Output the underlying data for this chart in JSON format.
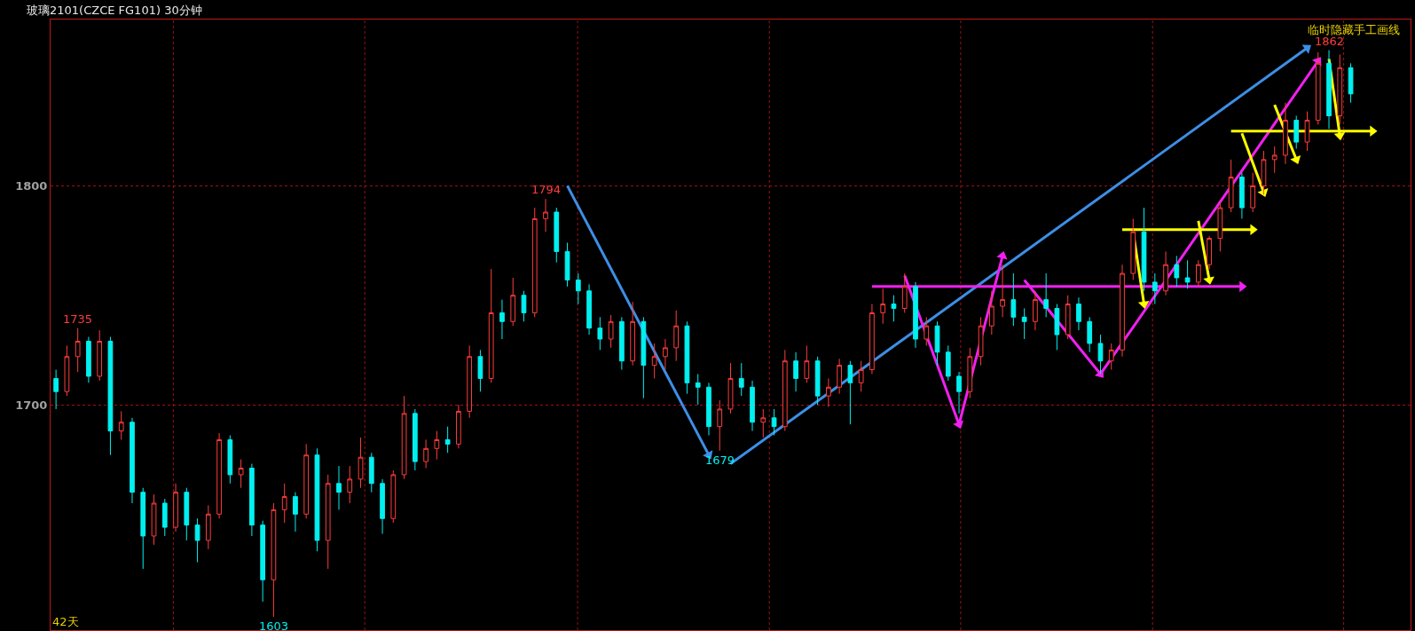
{
  "chart_data": {
    "type": "candlestick",
    "title": "玻璃2101(CZCE FG101) 30分钟",
    "categories": [
      null,
      null,
      null,
      null,
      null,
      null,
      null,
      null,
      null,
      null,
      null,
      null,
      null,
      null,
      null,
      null,
      null,
      null,
      null,
      null,
      null,
      null,
      null,
      null,
      null,
      null,
      null,
      null,
      null,
      null,
      null,
      null,
      null,
      null,
      null,
      null,
      null,
      null,
      null,
      null,
      null,
      null,
      null,
      null,
      null,
      null,
      null,
      null,
      null,
      null,
      null,
      null,
      null,
      null,
      null,
      null,
      null,
      null,
      null,
      null,
      null,
      null,
      null,
      null,
      null,
      null,
      null,
      null,
      null,
      null,
      null,
      null,
      null,
      null,
      null,
      null,
      null,
      null,
      null,
      null,
      null,
      null,
      null,
      null,
      null,
      null,
      null,
      null,
      null,
      null,
      null,
      null,
      null,
      null,
      null,
      null,
      null,
      null,
      null,
      null,
      null,
      null,
      null,
      null,
      null,
      null,
      null,
      null,
      null,
      null,
      null,
      null,
      null,
      null,
      null,
      null,
      null,
      null,
      null,
      null,
      null,
      null,
      null,
      null,
      null
    ],
    "ohlc": [
      [
        1712,
        1716,
        1698,
        1706
      ],
      [
        1706,
        1727,
        1704,
        1722
      ],
      [
        1722,
        1735,
        1715,
        1729
      ],
      [
        1729,
        1731,
        1710,
        1713
      ],
      [
        1713,
        1734,
        1711,
        1729
      ],
      [
        1729,
        1731,
        1677,
        1688
      ],
      [
        1688,
        1697,
        1684,
        1692
      ],
      [
        1692,
        1694,
        1655,
        1660
      ],
      [
        1660,
        1662,
        1625,
        1640
      ],
      [
        1640,
        1659,
        1636,
        1655
      ],
      [
        1655,
        1657,
        1640,
        1644
      ],
      [
        1644,
        1664,
        1642,
        1660
      ],
      [
        1660,
        1662,
        1638,
        1645
      ],
      [
        1645,
        1648,
        1628,
        1638
      ],
      [
        1638,
        1654,
        1634,
        1650
      ],
      [
        1650,
        1687,
        1648,
        1684
      ],
      [
        1684,
        1686,
        1664,
        1668
      ],
      [
        1668,
        1675,
        1662,
        1671
      ],
      [
        1671,
        1673,
        1640,
        1645
      ],
      [
        1645,
        1647,
        1610,
        1620
      ],
      [
        1620,
        1655,
        1603,
        1652
      ],
      [
        1652,
        1664,
        1646,
        1658
      ],
      [
        1658,
        1660,
        1642,
        1650
      ],
      [
        1650,
        1682,
        1648,
        1677
      ],
      [
        1677,
        1680,
        1633,
        1638
      ],
      [
        1638,
        1668,
        1625,
        1664
      ],
      [
        1664,
        1672,
        1652,
        1660
      ],
      [
        1660,
        1672,
        1655,
        1666
      ],
      [
        1666,
        1685,
        1662,
        1676
      ],
      [
        1676,
        1678,
        1660,
        1664
      ],
      [
        1664,
        1666,
        1641,
        1648
      ],
      [
        1648,
        1670,
        1646,
        1668
      ],
      [
        1668,
        1704,
        1666,
        1696
      ],
      [
        1696,
        1698,
        1670,
        1674
      ],
      [
        1674,
        1684,
        1671,
        1680
      ],
      [
        1680,
        1688,
        1675,
        1684
      ],
      [
        1684,
        1690,
        1678,
        1682
      ],
      [
        1682,
        1700,
        1680,
        1697
      ],
      [
        1697,
        1727,
        1694,
        1722
      ],
      [
        1722,
        1725,
        1706,
        1712
      ],
      [
        1712,
        1762,
        1710,
        1742
      ],
      [
        1742,
        1748,
        1730,
        1738
      ],
      [
        1738,
        1758,
        1736,
        1750
      ],
      [
        1750,
        1752,
        1738,
        1742
      ],
      [
        1742,
        1790,
        1740,
        1785
      ],
      [
        1785,
        1794,
        1779,
        1788
      ],
      [
        1788,
        1790,
        1765,
        1770
      ],
      [
        1770,
        1774,
        1754,
        1757
      ],
      [
        1757,
        1760,
        1746,
        1752
      ],
      [
        1752,
        1755,
        1732,
        1735
      ],
      [
        1735,
        1740,
        1725,
        1730
      ],
      [
        1730,
        1741,
        1726,
        1738
      ],
      [
        1738,
        1740,
        1716,
        1720
      ],
      [
        1720,
        1747,
        1718,
        1738
      ],
      [
        1738,
        1740,
        1703,
        1718
      ],
      [
        1718,
        1728,
        1712,
        1722
      ],
      [
        1722,
        1730,
        1716,
        1726
      ],
      [
        1726,
        1743,
        1720,
        1736
      ],
      [
        1736,
        1738,
        1705,
        1710
      ],
      [
        1710,
        1714,
        1700,
        1708
      ],
      [
        1708,
        1710,
        1686,
        1690
      ],
      [
        1690,
        1702,
        1679,
        1698
      ],
      [
        1698,
        1719,
        1696,
        1712
      ],
      [
        1712,
        1719,
        1704,
        1708
      ],
      [
        1708,
        1711,
        1688,
        1692
      ],
      [
        1692,
        1698,
        1685,
        1694
      ],
      [
        1694,
        1698,
        1686,
        1690
      ],
      [
        1690,
        1725,
        1688,
        1720
      ],
      [
        1720,
        1724,
        1706,
        1712
      ],
      [
        1712,
        1727,
        1710,
        1720
      ],
      [
        1720,
        1722,
        1700,
        1704
      ],
      [
        1704,
        1712,
        1699,
        1708
      ],
      [
        1708,
        1721,
        1705,
        1718
      ],
      [
        1718,
        1720,
        1691,
        1710
      ],
      [
        1710,
        1720,
        1706,
        1716
      ],
      [
        1716,
        1746,
        1714,
        1742
      ],
      [
        1742,
        1753,
        1737,
        1746
      ],
      [
        1746,
        1750,
        1738,
        1744
      ],
      [
        1744,
        1760,
        1742,
        1754
      ],
      [
        1754,
        1756,
        1726,
        1730
      ],
      [
        1730,
        1740,
        1727,
        1736
      ],
      [
        1736,
        1738,
        1718,
        1724
      ],
      [
        1724,
        1727,
        1711,
        1713
      ],
      [
        1713,
        1715,
        1696,
        1706
      ],
      [
        1706,
        1726,
        1703,
        1722
      ],
      [
        1722,
        1740,
        1718,
        1736
      ],
      [
        1736,
        1752,
        1732,
        1745
      ],
      [
        1745,
        1764,
        1740,
        1748
      ],
      [
        1748,
        1760,
        1736,
        1740
      ],
      [
        1740,
        1744,
        1730,
        1738
      ],
      [
        1738,
        1752,
        1734,
        1748
      ],
      [
        1748,
        1760,
        1740,
        1744
      ],
      [
        1744,
        1746,
        1725,
        1732
      ],
      [
        1732,
        1750,
        1730,
        1746
      ],
      [
        1746,
        1749,
        1734,
        1738
      ],
      [
        1738,
        1740,
        1724,
        1728
      ],
      [
        1728,
        1732,
        1714,
        1720
      ],
      [
        1720,
        1728,
        1716,
        1725
      ],
      [
        1725,
        1764,
        1722,
        1760
      ],
      [
        1760,
        1785,
        1757,
        1779
      ],
      [
        1779,
        1790,
        1752,
        1756
      ],
      [
        1756,
        1760,
        1746,
        1752
      ],
      [
        1752,
        1770,
        1750,
        1764
      ],
      [
        1764,
        1768,
        1754,
        1758
      ],
      [
        1758,
        1766,
        1753,
        1756
      ],
      [
        1756,
        1766,
        1754,
        1764
      ],
      [
        1764,
        1777,
        1762,
        1776
      ],
      [
        1776,
        1793,
        1770,
        1790
      ],
      [
        1790,
        1812,
        1788,
        1804
      ],
      [
        1804,
        1806,
        1785,
        1790
      ],
      [
        1790,
        1806,
        1788,
        1800
      ],
      [
        1800,
        1816,
        1796,
        1812
      ],
      [
        1812,
        1818,
        1806,
        1814
      ],
      [
        1814,
        1838,
        1810,
        1830
      ],
      [
        1830,
        1832,
        1817,
        1820
      ],
      [
        1820,
        1834,
        1816,
        1830
      ],
      [
        1830,
        1861,
        1828,
        1856
      ],
      [
        1856,
        1862,
        1826,
        1832
      ],
      [
        1832,
        1860,
        1828,
        1854
      ],
      [
        1854,
        1856,
        1838,
        1842
      ],
      null,
      null,
      null,
      null,
      null
    ],
    "series": [
      {
        "type": "line",
        "color": "#3d8fe6",
        "values": [
          null,
          null,
          null,
          null,
          null,
          null,
          null,
          null,
          null,
          null,
          null,
          null,
          null,
          null,
          null,
          null,
          null,
          null,
          null,
          null,
          null,
          null,
          null,
          null,
          null,
          null,
          null,
          null,
          null,
          null,
          null,
          null,
          null,
          null,
          null,
          null,
          null,
          null,
          null,
          null,
          null,
          null,
          null,
          null,
          null,
          null,
          null,
          1800,
          null,
          null,
          null,
          null,
          null,
          null,
          null,
          null,
          null,
          null,
          null,
          null,
          1677,
          null,
          null,
          null,
          null,
          null,
          null,
          null,
          null,
          null,
          null,
          null,
          null,
          null,
          null,
          null,
          null,
          null,
          null,
          null,
          null,
          null,
          null,
          null,
          null,
          null,
          null,
          null,
          null,
          null,
          null,
          null,
          null,
          null,
          null,
          null,
          null,
          null,
          null,
          null,
          null,
          null,
          null,
          null,
          null,
          null,
          null,
          null,
          null,
          null,
          null,
          null,
          null,
          null,
          null,
          null,
          null,
          null,
          null,
          null,
          null,
          null,
          null,
          null,
          null
        ]
      },
      {
        "type": "line",
        "color": "#3d8fe6",
        "values": [
          null,
          null,
          null,
          null,
          null,
          null,
          null,
          null,
          null,
          null,
          null,
          null,
          null,
          null,
          null,
          null,
          null,
          null,
          null,
          null,
          null,
          null,
          null,
          null,
          null,
          null,
          null,
          null,
          null,
          null,
          null,
          null,
          null,
          null,
          null,
          null,
          null,
          null,
          null,
          null,
          null,
          null,
          null,
          null,
          null,
          null,
          null,
          null,
          null,
          null,
          null,
          null,
          null,
          null,
          null,
          null,
          null,
          null,
          null,
          null,
          null,
          null,
          1673,
          null,
          null,
          null,
          null,
          null,
          null,
          null,
          null,
          null,
          null,
          null,
          null,
          null,
          null,
          null,
          null,
          null,
          null,
          null,
          null,
          null,
          null,
          null,
          null,
          null,
          null,
          null,
          null,
          null,
          null,
          null,
          null,
          null,
          null,
          null,
          null,
          null,
          null,
          null,
          null,
          null,
          null,
          null,
          null,
          null,
          null,
          null,
          null,
          null,
          null,
          null,
          null,
          1863,
          null,
          null,
          null,
          null,
          null,
          null,
          null,
          null,
          null
        ]
      },
      {
        "type": "line",
        "color": "#f020f0",
        "values": [
          null,
          null,
          null,
          null,
          null,
          null,
          null,
          null,
          null,
          null,
          null,
          null,
          null,
          null,
          null,
          null,
          null,
          null,
          null,
          null,
          null,
          null,
          null,
          null,
          null,
          null,
          null,
          null,
          null,
          null,
          null,
          null,
          null,
          null,
          null,
          null,
          null,
          null,
          null,
          null,
          null,
          null,
          null,
          null,
          null,
          null,
          null,
          null,
          null,
          null,
          null,
          null,
          null,
          null,
          null,
          null,
          null,
          null,
          null,
          null,
          null,
          null,
          null,
          null,
          null,
          null,
          null,
          null,
          null,
          null,
          null,
          null,
          null,
          null,
          null,
          null,
          null,
          null,
          1759,
          null,
          null,
          null,
          null,
          1691,
          null,
          null,
          null,
          1768,
          null,
          null,
          null,
          null,
          null,
          null,
          null,
          null,
          null,
          null,
          null,
          null,
          null,
          null,
          null,
          null,
          null,
          null,
          null,
          null,
          null,
          null,
          null,
          null,
          null,
          null,
          null,
          null,
          null,
          null,
          null,
          null,
          null,
          null,
          null,
          null,
          null
        ]
      },
      {
        "type": "line",
        "color": "#f020f0",
        "values": [
          null,
          null,
          null,
          null,
          null,
          null,
          null,
          null,
          null,
          null,
          null,
          null,
          null,
          null,
          null,
          null,
          null,
          null,
          null,
          null,
          null,
          null,
          null,
          null,
          null,
          null,
          null,
          null,
          null,
          null,
          null,
          null,
          null,
          null,
          null,
          null,
          null,
          null,
          null,
          null,
          null,
          null,
          null,
          null,
          null,
          null,
          null,
          null,
          null,
          null,
          null,
          null,
          null,
          null,
          null,
          null,
          null,
          null,
          null,
          null,
          null,
          null,
          null,
          null,
          null,
          null,
          null,
          null,
          null,
          null,
          null,
          null,
          null,
          null,
          null,
          null,
          null,
          null,
          null,
          null,
          null,
          null,
          null,
          null,
          null,
          null,
          null,
          null,
          null,
          1757,
          null,
          null,
          null,
          null,
          null,
          null,
          1714,
          null,
          null,
          null,
          null,
          null,
          null,
          null,
          null,
          null,
          null,
          null,
          null,
          null,
          null,
          null,
          null,
          null,
          null,
          null,
          1857,
          null,
          null,
          null,
          null,
          null,
          null,
          null,
          null
        ]
      },
      {
        "type": "line",
        "color": "#f020f0",
        "values": [
          null,
          null,
          null,
          null,
          null,
          null,
          null,
          null,
          null,
          null,
          null,
          null,
          null,
          null,
          null,
          null,
          null,
          null,
          null,
          null,
          null,
          null,
          null,
          null,
          null,
          null,
          null,
          null,
          null,
          null,
          null,
          null,
          null,
          null,
          null,
          null,
          null,
          null,
          null,
          null,
          null,
          null,
          null,
          null,
          null,
          null,
          null,
          null,
          null,
          null,
          null,
          null,
          null,
          null,
          null,
          null,
          null,
          null,
          null,
          null,
          null,
          null,
          null,
          null,
          null,
          null,
          null,
          null,
          null,
          null,
          null,
          null,
          null,
          null,
          null,
          1754,
          null,
          null,
          null,
          null,
          null,
          null,
          null,
          null,
          null,
          null,
          null,
          null,
          null,
          null,
          null,
          null,
          null,
          null,
          null,
          null,
          null,
          null,
          null,
          null,
          null,
          null,
          null,
          null,
          null,
          null,
          null,
          null,
          null,
          1754,
          null,
          null,
          null,
          null,
          null,
          null,
          null,
          null,
          null,
          null,
          null,
          null,
          null,
          null,
          null
        ]
      },
      {
        "type": "line",
        "color": "#ffff00",
        "values": [
          null,
          null,
          null,
          null,
          null,
          null,
          null,
          null,
          null,
          null,
          null,
          null,
          null,
          null,
          null,
          null,
          null,
          null,
          null,
          null,
          null,
          null,
          null,
          null,
          null,
          null,
          null,
          null,
          null,
          null,
          null,
          null,
          null,
          null,
          null,
          null,
          null,
          null,
          null,
          null,
          null,
          null,
          null,
          null,
          null,
          null,
          null,
          null,
          null,
          null,
          null,
          null,
          null,
          null,
          null,
          null,
          null,
          null,
          null,
          null,
          null,
          null,
          null,
          null,
          null,
          null,
          null,
          null,
          null,
          null,
          null,
          null,
          null,
          null,
          null,
          null,
          null,
          null,
          null,
          null,
          null,
          null,
          null,
          null,
          null,
          null,
          null,
          null,
          null,
          null,
          null,
          null,
          null,
          null,
          null,
          null,
          null,
          null,
          1780,
          null,
          null,
          null,
          null,
          null,
          null,
          null,
          null,
          null,
          null,
          null,
          1780,
          null,
          null,
          null,
          null,
          null,
          null,
          null,
          null,
          null,
          null,
          null,
          null,
          null,
          null
        ]
      },
      {
        "type": "line",
        "color": "#ffff00",
        "values": [
          null,
          null,
          null,
          null,
          null,
          null,
          null,
          null,
          null,
          null,
          null,
          null,
          null,
          null,
          null,
          null,
          null,
          null,
          null,
          null,
          null,
          null,
          null,
          null,
          null,
          null,
          null,
          null,
          null,
          null,
          null,
          null,
          null,
          null,
          null,
          null,
          null,
          null,
          null,
          null,
          null,
          null,
          null,
          null,
          null,
          null,
          null,
          null,
          null,
          null,
          null,
          null,
          null,
          null,
          null,
          null,
          null,
          null,
          null,
          null,
          null,
          null,
          null,
          null,
          null,
          null,
          null,
          null,
          null,
          null,
          null,
          null,
          null,
          null,
          null,
          null,
          null,
          null,
          null,
          null,
          null,
          null,
          null,
          null,
          null,
          null,
          null,
          null,
          null,
          null,
          null,
          null,
          null,
          null,
          null,
          null,
          null,
          null,
          null,
          null,
          null,
          null,
          null,
          null,
          null,
          null,
          null,
          null,
          1825,
          null,
          null,
          null,
          null,
          null,
          null,
          null,
          null,
          null,
          null,
          null,
          null,
          1825,
          null,
          null,
          null
        ]
      },
      {
        "type": "line",
        "color": "#ffff00",
        "values": [
          null,
          null,
          null,
          null,
          null,
          null,
          null,
          null,
          null,
          null,
          null,
          null,
          null,
          null,
          null,
          null,
          null,
          null,
          null,
          null,
          null,
          null,
          null,
          null,
          null,
          null,
          null,
          null,
          null,
          null,
          null,
          null,
          null,
          null,
          null,
          null,
          null,
          null,
          null,
          null,
          null,
          null,
          null,
          null,
          null,
          null,
          null,
          null,
          null,
          null,
          null,
          null,
          null,
          null,
          null,
          null,
          null,
          null,
          null,
          null,
          null,
          null,
          null,
          null,
          null,
          null,
          null,
          null,
          null,
          null,
          null,
          null,
          null,
          null,
          null,
          null,
          null,
          null,
          null,
          null,
          null,
          null,
          null,
          null,
          null,
          null,
          null,
          null,
          null,
          null,
          null,
          null,
          null,
          null,
          null,
          null,
          null,
          null,
          null,
          1779,
          1746,
          null,
          null,
          null,
          null,
          null,
          null,
          null,
          null,
          null,
          null,
          null,
          null,
          null,
          null,
          null,
          null,
          null,
          null,
          null,
          null,
          null,
          null,
          null,
          null
        ]
      },
      {
        "type": "line",
        "color": "#ffff00",
        "values": [
          null,
          null,
          null,
          null,
          null,
          null,
          null,
          null,
          null,
          null,
          null,
          null,
          null,
          null,
          null,
          null,
          null,
          null,
          null,
          null,
          null,
          null,
          null,
          null,
          null,
          null,
          null,
          null,
          null,
          null,
          null,
          null,
          null,
          null,
          null,
          null,
          null,
          null,
          null,
          null,
          null,
          null,
          null,
          null,
          null,
          null,
          null,
          null,
          null,
          null,
          null,
          null,
          null,
          null,
          null,
          null,
          null,
          null,
          null,
          null,
          null,
          null,
          null,
          null,
          null,
          null,
          null,
          null,
          null,
          null,
          null,
          null,
          null,
          null,
          null,
          null,
          null,
          null,
          null,
          null,
          null,
          null,
          null,
          null,
          null,
          null,
          null,
          null,
          null,
          null,
          null,
          null,
          null,
          null,
          null,
          null,
          null,
          null,
          null,
          null,
          null,
          null,
          null,
          null,
          null,
          1784,
          1757,
          null,
          null,
          null,
          null,
          null,
          null,
          null,
          null,
          null,
          null,
          null,
          null,
          null,
          null,
          null,
          null,
          null,
          null
        ]
      },
      {
        "type": "line",
        "color": "#ffff00",
        "values": [
          null,
          null,
          null,
          null,
          null,
          null,
          null,
          null,
          null,
          null,
          null,
          null,
          null,
          null,
          null,
          null,
          null,
          null,
          null,
          null,
          null,
          null,
          null,
          null,
          null,
          null,
          null,
          null,
          null,
          null,
          null,
          null,
          null,
          null,
          null,
          null,
          null,
          null,
          null,
          null,
          null,
          null,
          null,
          null,
          null,
          null,
          null,
          null,
          null,
          null,
          null,
          null,
          null,
          null,
          null,
          null,
          null,
          null,
          null,
          null,
          null,
          null,
          null,
          null,
          null,
          null,
          null,
          null,
          null,
          null,
          null,
          null,
          null,
          null,
          null,
          null,
          null,
          null,
          null,
          null,
          null,
          null,
          null,
          null,
          null,
          null,
          null,
          null,
          null,
          null,
          null,
          null,
          null,
          null,
          null,
          null,
          null,
          null,
          null,
          null,
          null,
          null,
          null,
          null,
          null,
          null,
          null,
          null,
          null,
          1824,
          null,
          1797,
          null,
          null,
          null,
          null,
          null,
          null,
          null,
          null,
          null,
          null,
          null,
          null,
          null
        ]
      },
      {
        "type": "line",
        "color": "#ffff00",
        "values": [
          null,
          null,
          null,
          null,
          null,
          null,
          null,
          null,
          null,
          null,
          null,
          null,
          null,
          null,
          null,
          null,
          null,
          null,
          null,
          null,
          null,
          null,
          null,
          null,
          null,
          null,
          null,
          null,
          null,
          null,
          null,
          null,
          null,
          null,
          null,
          null,
          null,
          null,
          null,
          null,
          null,
          null,
          null,
          null,
          null,
          null,
          null,
          null,
          null,
          null,
          null,
          null,
          null,
          null,
          null,
          null,
          null,
          null,
          null,
          null,
          null,
          null,
          null,
          null,
          null,
          null,
          null,
          null,
          null,
          null,
          null,
          null,
          null,
          null,
          null,
          null,
          null,
          null,
          null,
          null,
          null,
          null,
          null,
          null,
          null,
          null,
          null,
          null,
          null,
          null,
          null,
          null,
          null,
          null,
          null,
          null,
          null,
          null,
          null,
          null,
          null,
          null,
          null,
          null,
          null,
          null,
          null,
          null,
          null,
          null,
          null,
          null,
          1837,
          null,
          1812,
          null,
          null,
          null,
          null,
          null,
          null,
          null,
          null,
          null,
          null
        ]
      },
      {
        "type": "line",
        "color": "#ffff00",
        "values": [
          null,
          null,
          null,
          null,
          null,
          null,
          null,
          null,
          null,
          null,
          null,
          null,
          null,
          null,
          null,
          null,
          null,
          null,
          null,
          null,
          null,
          null,
          null,
          null,
          null,
          null,
          null,
          null,
          null,
          null,
          null,
          null,
          null,
          null,
          null,
          null,
          null,
          null,
          null,
          null,
          null,
          null,
          null,
          null,
          null,
          null,
          null,
          null,
          null,
          null,
          null,
          null,
          null,
          null,
          null,
          null,
          null,
          null,
          null,
          null,
          null,
          null,
          null,
          null,
          null,
          null,
          null,
          null,
          null,
          null,
          null,
          null,
          null,
          null,
          null,
          null,
          null,
          null,
          null,
          null,
          null,
          null,
          null,
          null,
          null,
          null,
          null,
          null,
          null,
          null,
          null,
          null,
          null,
          null,
          null,
          null,
          null,
          null,
          null,
          null,
          null,
          null,
          null,
          null,
          null,
          null,
          null,
          null,
          null,
          null,
          null,
          null,
          null,
          null,
          null,
          null,
          null,
          1858,
          1823,
          null,
          null,
          null,
          null,
          null,
          null
        ]
      }
    ],
    "ylim": [
      1597,
      1876
    ],
    "yticks": [
      1700,
      1800
    ],
    "grid": "y",
    "tick_labels": "y",
    "marker": "triangle",
    "annotations": [
      "临时隐藏手工画线",
      "42天",
      {
        "text": "1735",
        "y": 1735
      },
      {
        "text": "1794",
        "y": 1794
      },
      {
        "text": "1603",
        "y": 1603
      },
      {
        "text": "1679",
        "y": 1679
      },
      {
        "text": "1862",
        "y": 1862
      }
    ]
  }
}
